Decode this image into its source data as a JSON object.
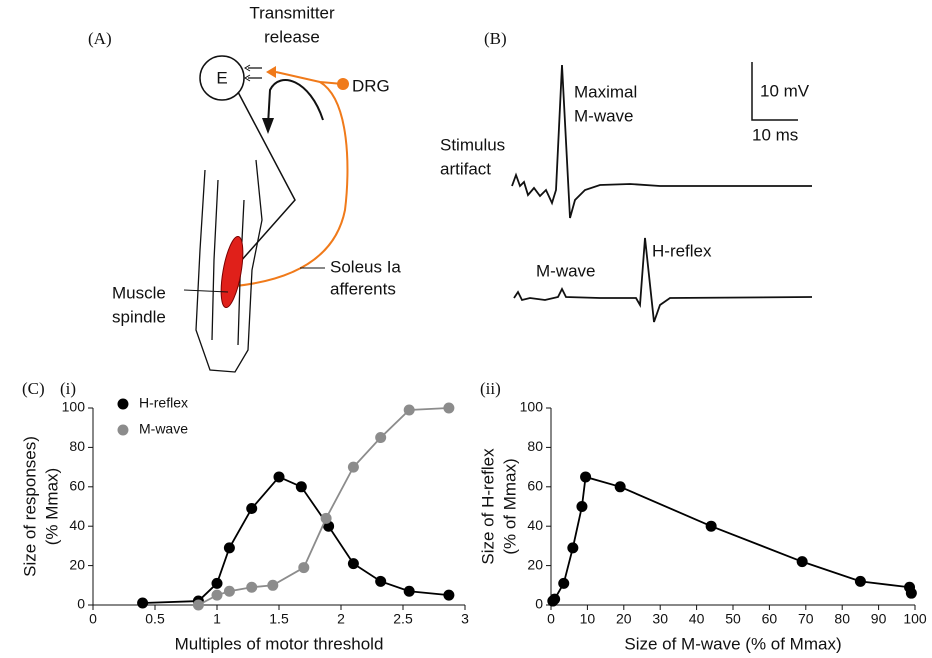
{
  "panel_labels": {
    "a": "(A)",
    "b": "(B)",
    "c": "(C)"
  },
  "diagram_a": {
    "transmitter": [
      "Transmitter",
      "release"
    ],
    "neuron": "E",
    "drg": "DRG",
    "afferents": [
      "Soleus Ia",
      "afferents"
    ],
    "spindle": [
      "Muscle",
      "spindle"
    ]
  },
  "traces_b": {
    "maximal": [
      "Maximal",
      "M-wave"
    ],
    "artifact": [
      "Stimulus",
      "artifact"
    ],
    "m_wave": "M-wave",
    "h_reflex": "H-reflex",
    "scale_v": "10 mV",
    "scale_t": "10 ms"
  },
  "chart_data": [
    {
      "type": "line",
      "subtitle": "(i)",
      "xlabel": "Multiples of motor threshold",
      "ylabel": [
        "Size of responses)",
        "(% Mmax)"
      ],
      "xlim": [
        0,
        3
      ],
      "xticks": [
        0,
        0.5,
        1,
        1.5,
        2,
        2.5,
        3
      ],
      "ylim": [
        0,
        100
      ],
      "yticks": [
        0,
        20,
        40,
        60,
        80,
        100
      ],
      "legend": "upper left",
      "series": [
        {
          "name": "H-reflex",
          "color": "#000000",
          "x": [
            0.4,
            0.85,
            1.0,
            1.1,
            1.28,
            1.5,
            1.68,
            1.9,
            2.1,
            2.32,
            2.55,
            2.87
          ],
          "values": [
            1,
            2,
            11,
            29,
            49,
            65,
            60,
            40,
            21,
            12,
            7,
            5
          ]
        },
        {
          "name": "M-wave",
          "color": "#8c8c8c",
          "x": [
            0.85,
            1.0,
            1.1,
            1.28,
            1.45,
            1.7,
            1.88,
            2.1,
            2.32,
            2.55,
            2.87
          ],
          "values": [
            0,
            5,
            7,
            9,
            10,
            19,
            44,
            70,
            85,
            99,
            100
          ]
        }
      ]
    },
    {
      "type": "line",
      "subtitle": "(ii)",
      "xlabel": "Size of M-wave (% of Mmax)",
      "ylabel": [
        "Size of H-reflex",
        "(% of Mmax)"
      ],
      "xlim": [
        0,
        100
      ],
      "xticks": [
        0,
        10,
        20,
        30,
        40,
        50,
        60,
        70,
        80,
        90,
        100
      ],
      "ylim": [
        0,
        100
      ],
      "yticks": [
        0,
        20,
        40,
        60,
        80,
        100
      ],
      "series": [
        {
          "color": "#000000",
          "x": [
            0.5,
            1,
            3.5,
            6,
            8.5,
            9.5,
            19,
            44,
            69,
            85,
            98.5,
            99
          ],
          "values": [
            2,
            3,
            11,
            29,
            50,
            65,
            60,
            40,
            22,
            12,
            9,
            6
          ]
        }
      ]
    }
  ]
}
